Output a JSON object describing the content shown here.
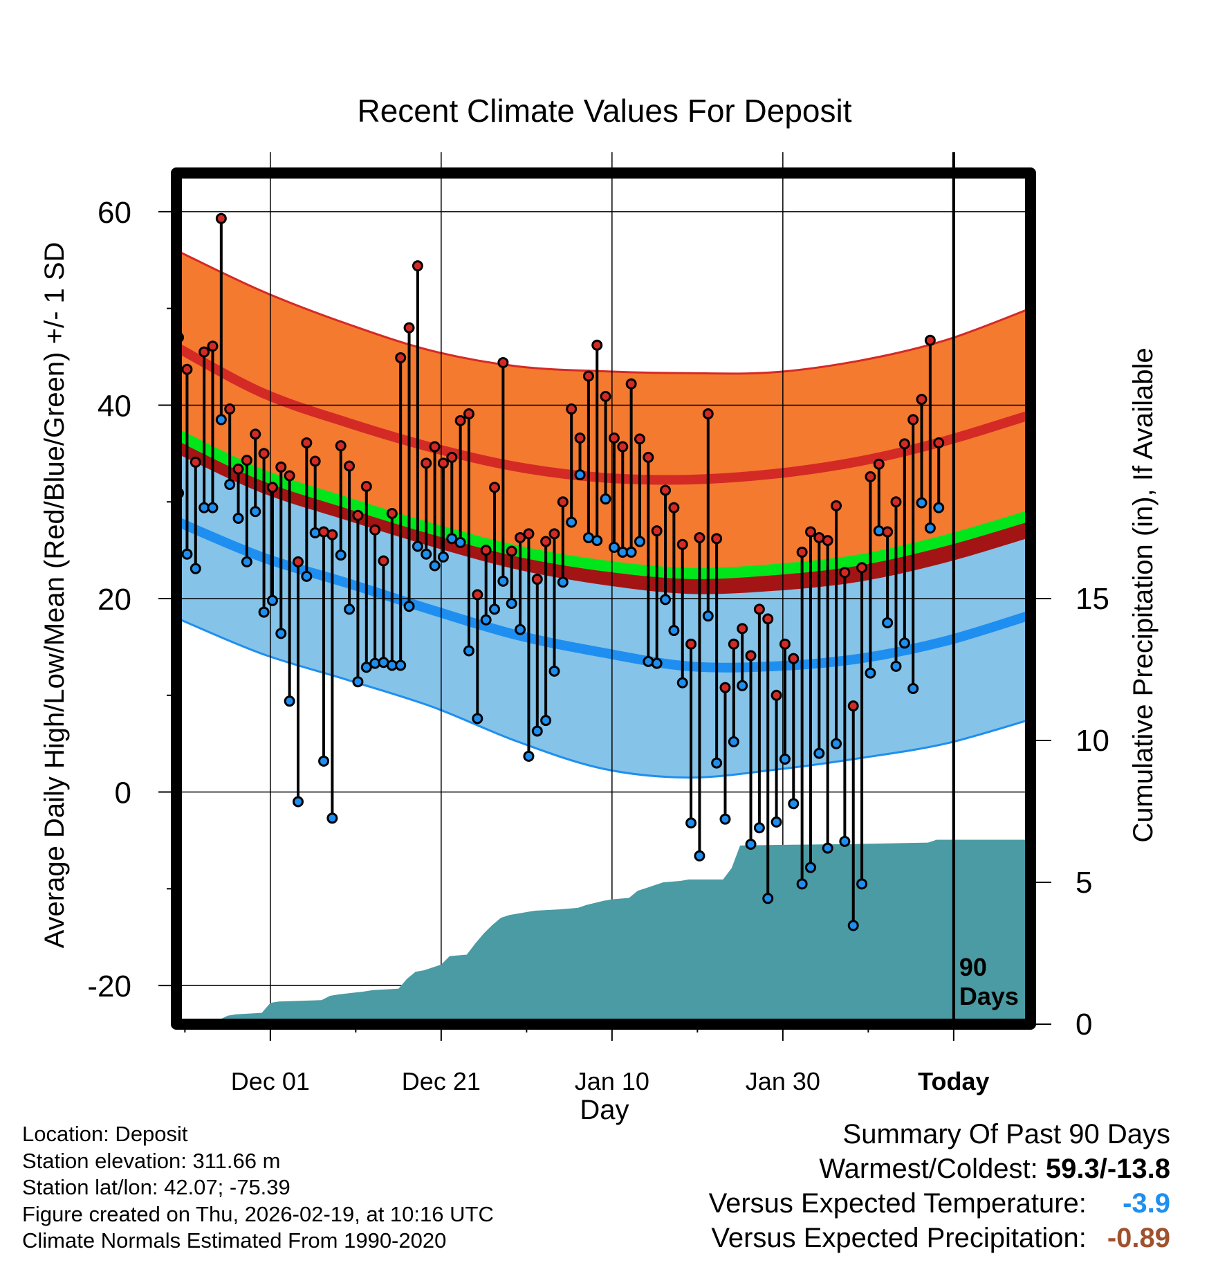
{
  "colors": {
    "normal_high_band": "#f47a30",
    "normal_high_line": "#d42a26",
    "normal_low_band": "#86c3e8",
    "normal_low_line": "#1e8ff0",
    "normal_mean_line": "#00e61a",
    "mean_above_normal": "#a31515",
    "precip_fill": "#4a9ba3",
    "high_marker": "#d42a26",
    "low_marker": "#1e8ff0",
    "versus_temp_color": "#1e8ff0",
    "versus_precip_color": "#a0522d"
  },
  "chart_data": {
    "type": "climate-range",
    "title": "Recent Climate Values For Deposit",
    "xlabel": "Day",
    "ylabel_left": "Average Daily High/Low/Mean (Red/Blue/Green) +/- 1 SD",
    "ylabel_right": "Cumulative Precipitation (in), If Available",
    "x_ticks": [
      {
        "day": 11,
        "label": "Dec 01"
      },
      {
        "day": 31,
        "label": "Dec 21"
      },
      {
        "day": 51,
        "label": "Jan 10"
      },
      {
        "day": 71,
        "label": "Jan 30"
      },
      {
        "day": 91,
        "label": "Today"
      }
    ],
    "x_range": [
      0,
      100
    ],
    "y_range": [
      -24,
      64
    ],
    "y_ticks": [
      -20,
      0,
      20,
      40,
      60
    ],
    "y2_range": [
      0,
      30
    ],
    "y2_ticks": [
      0,
      5,
      10,
      15
    ],
    "today_line_day": 91,
    "today_label": "90\nDays",
    "normals": {
      "day": [
        0,
        10,
        20,
        30,
        40,
        50,
        60,
        70,
        80,
        90,
        100
      ],
      "high_mean": [
        46,
        41.3,
        38.2,
        35.6,
        33.6,
        32.5,
        32.3,
        32.9,
        34.2,
        36.3,
        39
      ],
      "high_upper": [
        56,
        51.8,
        48.4,
        45.6,
        44,
        43.5,
        43.3,
        43.4,
        44.6,
        46.7,
        50
      ],
      "low_mean": [
        28,
        24.3,
        21.6,
        18.8,
        16.2,
        14.4,
        13,
        13,
        13.8,
        15.6,
        18.3
      ],
      "low_lower": [
        18,
        14.3,
        11.6,
        8.8,
        5.2,
        2.4,
        1.5,
        2.3,
        3.5,
        5,
        7.5
      ],
      "mean": [
        37,
        32.8,
        29.9,
        27.2,
        24.9,
        23.4,
        22.6,
        23,
        24,
        26,
        28.6
      ]
    },
    "daily_high": [
      47,
      43.7,
      34.1,
      45.5,
      46.1,
      59.3,
      39.6,
      33.4,
      34.3,
      37,
      35,
      31.5,
      33.6,
      32.7,
      23.8,
      36.1,
      34.2,
      26.9,
      26.6,
      35.8,
      33.7,
      28.6,
      31.6,
      27.1,
      23.9,
      28.8,
      44.9,
      48,
      54.4,
      34,
      35.7,
      34,
      34.6,
      38.4,
      39.1,
      20.4,
      25,
      31.5,
      44.4,
      24.9,
      26.3,
      26.7,
      22,
      25.9,
      26.7,
      30,
      39.6,
      36.6,
      43,
      46.2,
      40.9,
      36.6,
      35.7,
      42.2,
      36.5,
      34.6,
      27,
      31.2,
      29.4,
      25.6,
      15.3,
      26.3,
      39.1,
      26.2,
      10.8,
      15.3,
      16.9,
      14.1,
      18.9,
      17.9,
      10,
      15.3,
      13.8,
      24.8,
      26.9,
      26.3,
      26,
      29.6,
      22.7,
      8.9,
      23.2,
      32.6,
      33.9,
      26.9,
      30,
      36,
      38.5,
      40.6,
      46.7,
      36.1
    ],
    "daily_low": [
      30.9,
      24.6,
      23.1,
      29.4,
      29.4,
      38.5,
      31.8,
      28.3,
      23.8,
      29,
      18.6,
      19.8,
      16.4,
      9.4,
      -1,
      22.3,
      26.8,
      3.2,
      -2.7,
      24.5,
      18.9,
      11.4,
      12.9,
      13.3,
      13.4,
      13.1,
      13.1,
      19.2,
      25.4,
      24.6,
      23.4,
      24.3,
      26.2,
      25.8,
      14.6,
      7.6,
      17.8,
      18.9,
      21.8,
      19.5,
      16.8,
      3.7,
      6.3,
      7.4,
      12.5,
      21.7,
      27.9,
      32.8,
      26.3,
      26,
      30.3,
      25.3,
      24.8,
      24.8,
      25.9,
      13.5,
      13.3,
      19.9,
      16.7,
      11.3,
      -3.2,
      -6.6,
      18.2,
      3,
      -2.8,
      5.2,
      11,
      -5.4,
      -3.7,
      -11,
      -3.1,
      3.4,
      -1.2,
      -9.5,
      -7.8,
      4,
      -5.8,
      5,
      -5.1,
      -13.8,
      -9.5,
      12.3,
      27,
      17.5,
      13,
      15.4,
      10.7,
      29.9,
      27.3,
      29.4
    ],
    "cumulative_precip": {
      "day": [
        4,
        5,
        6,
        7,
        10,
        11,
        12,
        17,
        18,
        19,
        22,
        23,
        26,
        27,
        28,
        29,
        31,
        32,
        34,
        35,
        36,
        37,
        38,
        39,
        40,
        41,
        42,
        45,
        47,
        48,
        50,
        51,
        53,
        54,
        55,
        56,
        57,
        59,
        60,
        64,
        65,
        66,
        79,
        88,
        89,
        100
      ],
      "value": [
        0,
        0.15,
        0.3,
        0.35,
        0.4,
        0.75,
        0.8,
        0.85,
        1,
        1.05,
        1.15,
        1.2,
        1.25,
        1.6,
        1.85,
        1.9,
        2.1,
        2.4,
        2.45,
        2.85,
        3.2,
        3.5,
        3.75,
        3.85,
        3.9,
        3.95,
        4,
        4.05,
        4.1,
        4.2,
        4.35,
        4.4,
        4.45,
        4.7,
        4.8,
        4.9,
        5,
        5.05,
        5.1,
        5.1,
        5.5,
        6.3,
        6.35,
        6.4,
        6.5,
        6.5
      ]
    },
    "precip_base": 0,
    "legend_position": "none"
  },
  "info": {
    "location": "Location: Deposit",
    "elevation": "Station elevation: 311.66 m",
    "latlon": "Station lat/lon: 42.07; -75.39",
    "created": "Figure created on Thu, 2026-02-19, at 10:16 UTC",
    "normals": "Climate Normals Estimated From 1990-2020"
  },
  "summary": {
    "heading": "Summary Of Past 90 Days",
    "warmest_label": "Warmest/Coldest:",
    "warmest_value": "59.3/-13.8",
    "temp_label": "Versus Expected Temperature:",
    "temp_value": "-3.9",
    "precip_label": "Versus Expected Precipitation:",
    "precip_value": "-0.89"
  }
}
